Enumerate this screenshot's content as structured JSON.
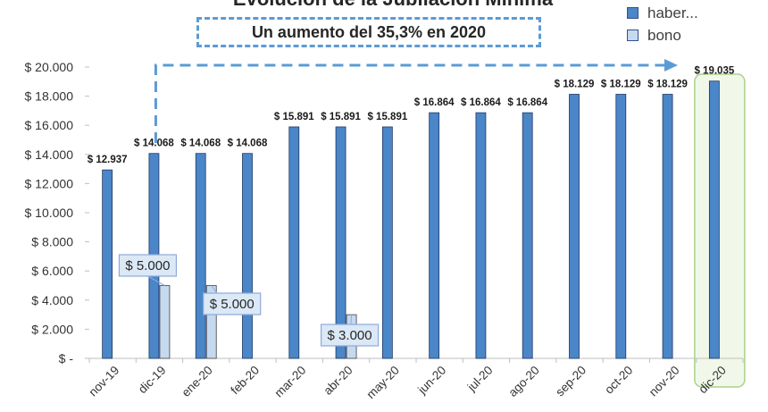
{
  "chart_data": {
    "type": "bar",
    "title": "Evolución de la Jubilación Mínima",
    "annotation": "Un aumento del 35,3% en 2020",
    "categories": [
      "nov-19",
      "dic-19",
      "ene-20",
      "feb-20",
      "mar-20",
      "abr-20",
      "may-20",
      "jun-20",
      "jul-20",
      "ago-20",
      "sep-20",
      "oct-20",
      "nov-20",
      "dic-20"
    ],
    "series": [
      {
        "name": "haber...",
        "color": "#4a86c8",
        "values": [
          12937,
          14068,
          14068,
          14068,
          15891,
          15891,
          15891,
          16864,
          16864,
          16864,
          18129,
          18129,
          18129,
          19035
        ],
        "labels": [
          "$ 12.937",
          "$ 14.068",
          "$ 14.068",
          "$ 14.068",
          "$ 15.891",
          "$ 15.891",
          "$ 15.891",
          "$ 16.864",
          "$ 16.864",
          "$ 16.864",
          "$ 18.129",
          "$ 18.129",
          "$ 18.129",
          "$ 19.035"
        ]
      },
      {
        "name": "bono",
        "color": "#c5d9ef",
        "values": [
          null,
          5000,
          5000,
          null,
          null,
          3000,
          null,
          null,
          null,
          null,
          null,
          null,
          null,
          null
        ],
        "labels": [
          null,
          "$ 5.000",
          "$ 5.000",
          null,
          null,
          "$ 3.000",
          null,
          null,
          null,
          null,
          null,
          null,
          null,
          null
        ]
      }
    ],
    "y_ticks": [
      0,
      2000,
      4000,
      6000,
      8000,
      10000,
      12000,
      14000,
      16000,
      18000,
      20000
    ],
    "y_tick_labels": [
      "$ -",
      "$ 2.000",
      "$ 4.000",
      "$ 6.000",
      "$ 8.000",
      "$ 10.000",
      "$ 12.000",
      "$ 14.000",
      "$ 16.000",
      "$ 18.000",
      "$ 20.000"
    ],
    "ylim": [
      0,
      20000
    ],
    "grid": false,
    "legend_position": "top-right",
    "highlighted_category": "dic-20"
  }
}
